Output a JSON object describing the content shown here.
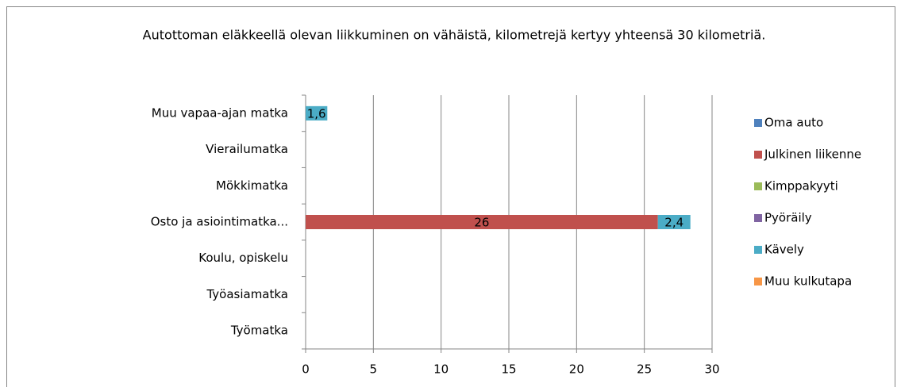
{
  "chart_data": {
    "type": "stacked-horizontal-bar",
    "title": "Autottoman eläkkeellä olevan liikkuminen on vähäistä, kilometrejä kertyy yhteensä 30 kilometriä.",
    "categories": [
      "Muu vapaa-ajan matka",
      "Vierailumatka",
      "Mökkimatka",
      "Osto ja asiointimatka...",
      "Koulu, opiskelu",
      "Työasiamatka",
      "Työmatka"
    ],
    "series": [
      {
        "name": "Oma auto",
        "color": "#4f81bd",
        "values": [
          null,
          null,
          null,
          null,
          null,
          null,
          null
        ]
      },
      {
        "name": "Julkinen liikenne",
        "color": "#c0504d",
        "values": [
          null,
          null,
          null,
          26,
          null,
          null,
          null
        ]
      },
      {
        "name": "Kimppakyyti",
        "color": "#9bbb59",
        "values": [
          null,
          null,
          null,
          null,
          null,
          null,
          null
        ]
      },
      {
        "name": "Pyöräily",
        "color": "#8064a2",
        "values": [
          null,
          null,
          null,
          null,
          null,
          null,
          null
        ]
      },
      {
        "name": "Kävely",
        "color": "#4bacc6",
        "values": [
          1.6,
          null,
          null,
          2.4,
          null,
          null,
          null
        ],
        "value_labels": [
          "1,6",
          null,
          null,
          "2,4",
          null,
          null,
          null
        ]
      },
      {
        "name": "Muu kulkutapa",
        "color": "#f79646",
        "values": [
          null,
          null,
          null,
          null,
          null,
          null,
          null
        ]
      }
    ],
    "xlim": [
      0,
      30
    ],
    "xticks": [
      0,
      5,
      10,
      15,
      20,
      25,
      30
    ],
    "grid": true,
    "legend": "right"
  }
}
